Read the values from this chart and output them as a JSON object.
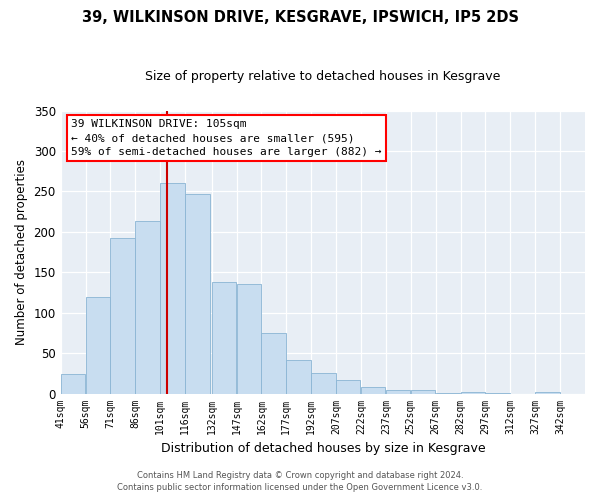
{
  "title": "39, WILKINSON DRIVE, KESGRAVE, IPSWICH, IP5 2DS",
  "subtitle": "Size of property relative to detached houses in Kesgrave",
  "xlabel": "Distribution of detached houses by size in Kesgrave",
  "ylabel": "Number of detached properties",
  "bar_color": "#c8ddf0",
  "bar_edge_color": "#8ab4d4",
  "vline_x": 105,
  "vline_color": "#cc0000",
  "annotation_title": "39 WILKINSON DRIVE: 105sqm",
  "annotation_line1": "← 40% of detached houses are smaller (595)",
  "annotation_line2": "59% of semi-detached houses are larger (882) →",
  "bins_left": [
    41,
    56,
    71,
    86,
    101,
    116,
    132,
    147,
    162,
    177,
    192,
    207,
    222,
    237,
    252,
    267,
    282,
    297,
    312,
    327
  ],
  "bin_width": 15,
  "heights": [
    24,
    120,
    192,
    214,
    261,
    247,
    138,
    136,
    75,
    41,
    25,
    17,
    8,
    5,
    5,
    1,
    2,
    1,
    0,
    2
  ],
  "ylim": [
    0,
    350
  ],
  "xlim": [
    41,
    357
  ],
  "yticks": [
    0,
    50,
    100,
    150,
    200,
    250,
    300,
    350
  ],
  "tick_labels": [
    "41sqm",
    "56sqm",
    "71sqm",
    "86sqm",
    "101sqm",
    "116sqm",
    "132sqm",
    "147sqm",
    "162sqm",
    "177sqm",
    "192sqm",
    "207sqm",
    "222sqm",
    "237sqm",
    "252sqm",
    "267sqm",
    "282sqm",
    "297sqm",
    "312sqm",
    "327sqm",
    "342sqm"
  ],
  "tick_positions": [
    41,
    56,
    71,
    86,
    101,
    116,
    132,
    147,
    162,
    177,
    192,
    207,
    222,
    237,
    252,
    267,
    282,
    297,
    312,
    327,
    342
  ],
  "footer_line1": "Contains HM Land Registry data © Crown copyright and database right 2024.",
  "footer_line2": "Contains public sector information licensed under the Open Government Licence v3.0.",
  "plot_bg_color": "#e8eef5",
  "grid_color": "#ffffff",
  "fig_bg_color": "#ffffff"
}
